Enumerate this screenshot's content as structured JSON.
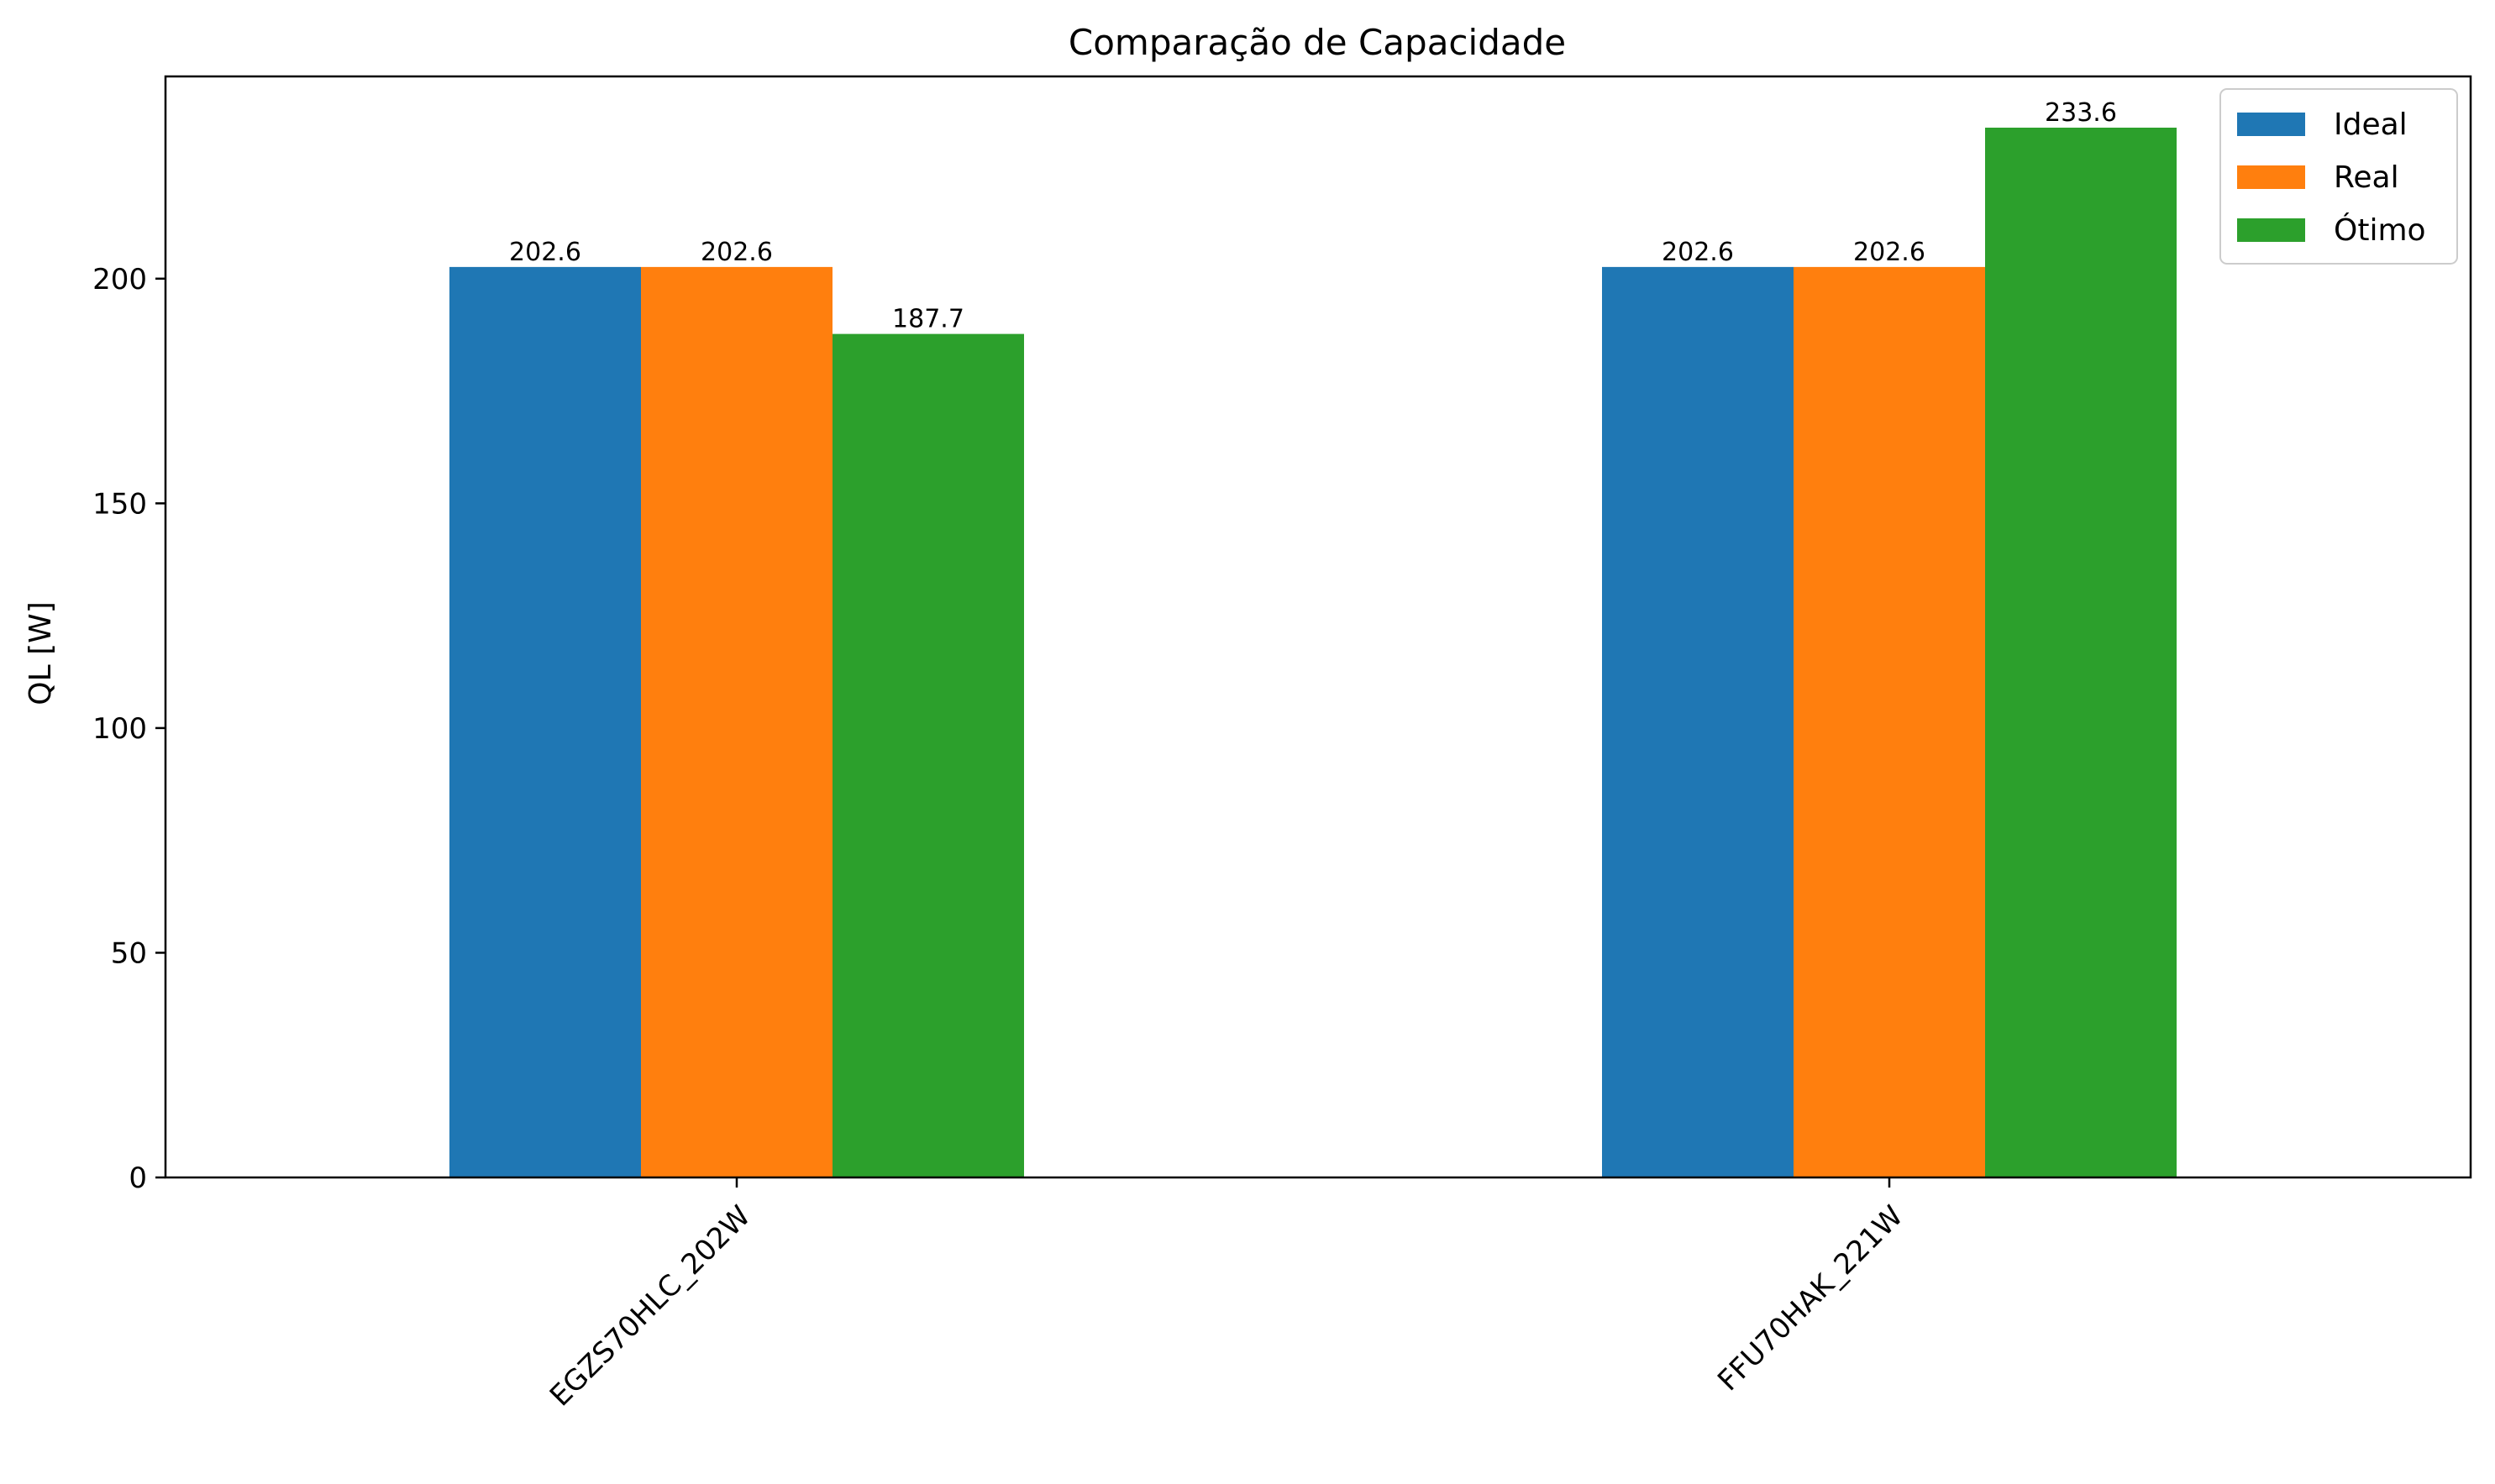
{
  "chart_data": {
    "type": "bar",
    "title": "Comparação de Capacidade",
    "xlabel": "",
    "ylabel": "QL [W]",
    "categories": [
      "EGZS70HLC_202W",
      "FFU70HAK_221W"
    ],
    "series": [
      {
        "name": "Ideal",
        "values": [
          202.6,
          202.6
        ],
        "color": "#1f77b4"
      },
      {
        "name": "Real",
        "values": [
          202.6,
          202.6
        ],
        "color": "#ff7f0e"
      },
      {
        "name": "Ótimo",
        "values": [
          187.7,
          233.6
        ],
        "color": "#2ca02c"
      }
    ],
    "data_labels": [
      [
        "202.6",
        "202.6"
      ],
      [
        "202.6",
        "202.6"
      ],
      [
        "187.7",
        "233.6"
      ]
    ],
    "ylim": [
      0,
      245
    ],
    "yticks": [
      0,
      50,
      100,
      150,
      200
    ],
    "grid": false,
    "legend_position": "top-right"
  }
}
